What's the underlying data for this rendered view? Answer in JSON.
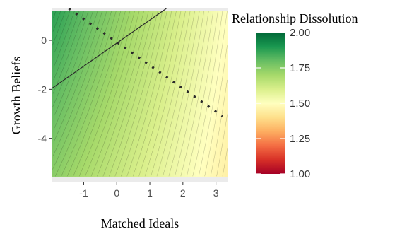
{
  "chart_data": {
    "type": "heatmap",
    "title": "",
    "xlabel": "Matched Ideals",
    "ylabel": "Growth Beliefs",
    "xlim": [
      -1.95,
      3.35
    ],
    "ylim": [
      -5.8,
      1.3
    ],
    "x_ticks": [
      -1,
      0,
      1,
      2,
      3
    ],
    "y_ticks": [
      0,
      -2,
      -4
    ],
    "x_tick_labels": [
      "-1",
      "0",
      "1",
      "2",
      "3"
    ],
    "y_tick_labels": [
      "0",
      "-2",
      "-4"
    ],
    "colorbar": {
      "title": "Relationship Dissolution",
      "range": [
        1.0,
        2.0
      ],
      "ticks": [
        2.0,
        1.75,
        1.5,
        1.25,
        1.0
      ],
      "tick_labels": [
        "2.00",
        "1.75",
        "1.50",
        "1.25",
        "1.00"
      ],
      "colormap": [
        "#a50026",
        "#d73027",
        "#f46d43",
        "#fdae61",
        "#fee08b",
        "#ffffbf",
        "#d9ef8b",
        "#a6d96a",
        "#66bd63",
        "#1a9850",
        "#006837"
      ]
    },
    "surface": {
      "description_of_values": "predicted dissolution over grid",
      "value_at_corners": {
        "x_min_y_max": 1.88,
        "x_max_y_max": 1.5,
        "x_min_y_min": 1.74,
        "x_max_y_min": 1.45
      }
    },
    "series": [
      {
        "kind": "solid-line",
        "x": [
          -1.95,
          1.5
        ],
        "y": [
          -1.95,
          1.3
        ]
      },
      {
        "kind": "dotted-line",
        "x": [
          -1.45,
          3.2
        ],
        "y": [
          1.3,
          -3.1
        ]
      }
    ],
    "background": "#ebebeb",
    "grid": true
  }
}
